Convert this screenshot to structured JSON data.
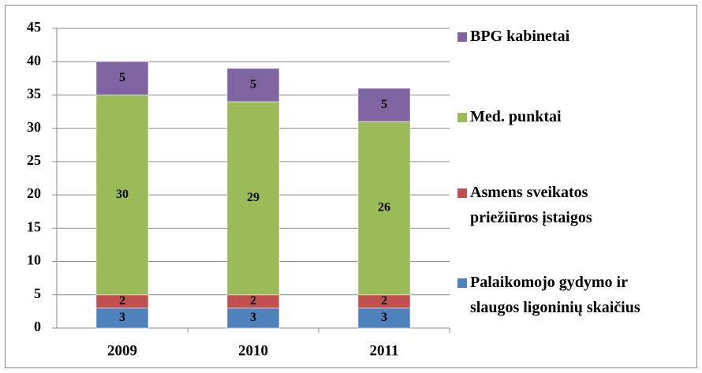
{
  "chart_data": {
    "type": "bar",
    "stacked": true,
    "categories": [
      "2009",
      "2010",
      "2011"
    ],
    "series": [
      {
        "name": "Palaikomojo gydymo ir slaugos ligoninių skaičius",
        "color": "#4f81bd",
        "values": [
          3,
          3,
          3
        ]
      },
      {
        "name": "Asmens sveikatos priežiūros įstaigos",
        "color": "#c0504d",
        "values": [
          2,
          2,
          2
        ]
      },
      {
        "name": "Med. punktai",
        "color": "#9bbb59",
        "values": [
          30,
          29,
          26
        ]
      },
      {
        "name": "BPG kabinetai",
        "color": "#8064a2",
        "values": [
          5,
          5,
          5
        ]
      }
    ],
    "ylim": [
      0,
      45
    ],
    "yticks": [
      0,
      5,
      10,
      15,
      20,
      25,
      30,
      35,
      40,
      45
    ],
    "grid": true,
    "legend": "right"
  }
}
